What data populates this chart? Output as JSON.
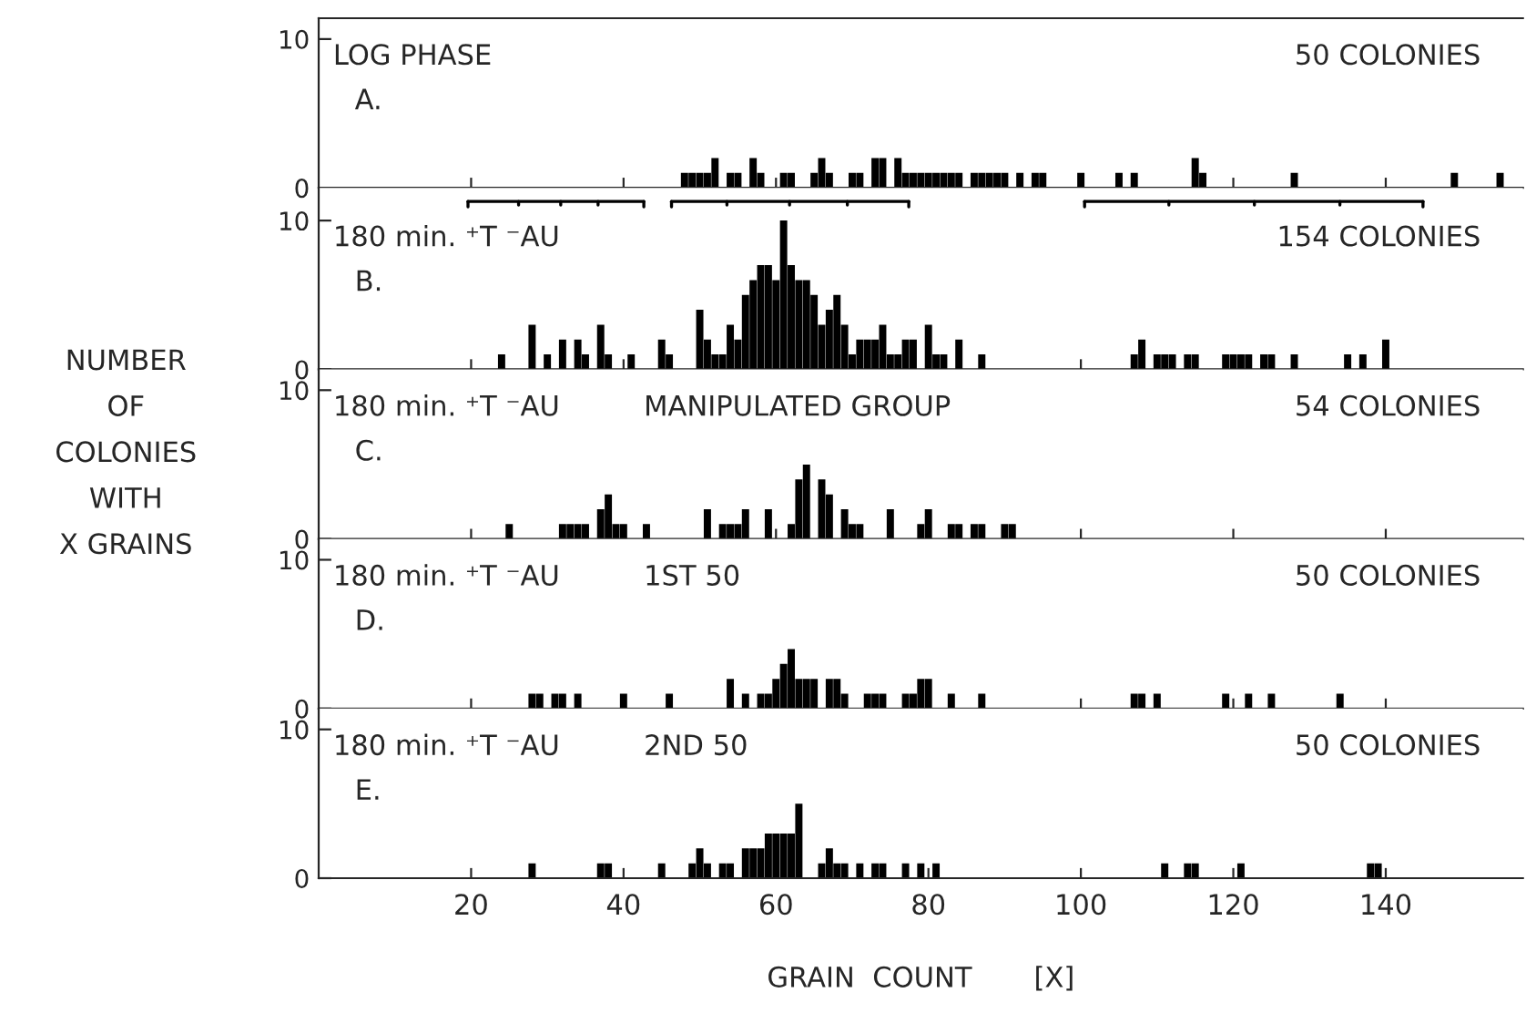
{
  "chart_data": [
    {
      "type": "bar",
      "title": "LOG PHASE",
      "subtitle": "A.",
      "annotations": [
        "50 COLONIES"
      ],
      "color": "#000000",
      "xlim": [
        0,
        158
      ],
      "xticks": [
        20,
        40,
        60,
        80,
        100,
        120,
        140
      ],
      "ylim": [
        0,
        11.4
      ],
      "yticks": [
        0,
        10
      ],
      "tick_labels": "y",
      "x": [
        48,
        49,
        50,
        51,
        52,
        54,
        55,
        57,
        58,
        61,
        62,
        65,
        66,
        67,
        70,
        71,
        73,
        74,
        76,
        77,
        78,
        79,
        80,
        81,
        82,
        83,
        84,
        86,
        87,
        88,
        89,
        90,
        92,
        94,
        95,
        100,
        105,
        107,
        115,
        116,
        128,
        149,
        155
      ],
      "values": [
        1,
        1,
        1,
        1,
        2,
        1,
        1,
        2,
        1,
        1,
        1,
        1,
        2,
        1,
        1,
        1,
        2,
        2,
        2,
        1,
        1,
        1,
        1,
        1,
        1,
        1,
        1,
        1,
        1,
        1,
        1,
        1,
        1,
        1,
        1,
        1,
        1,
        1,
        2,
        1,
        1,
        1,
        1
      ]
    },
    {
      "type": "bar",
      "title": "180 min. ⁺T ⁻AU",
      "subtitle": "B.",
      "annotations": [
        "154 COLONIES"
      ],
      "color": "#000000",
      "xlim": [
        0,
        158
      ],
      "xticks": [
        20,
        40,
        60,
        80,
        100,
        120,
        140
      ],
      "ylim": [
        0,
        12.2
      ],
      "yticks": [
        0,
        10
      ],
      "tick_labels": "y",
      "x": [
        24,
        28,
        30,
        32,
        34,
        35,
        37,
        38,
        41,
        45,
        46,
        50,
        51,
        52,
        53,
        54,
        55,
        56,
        57,
        58,
        59,
        60,
        61,
        62,
        63,
        64,
        65,
        66,
        67,
        68,
        69,
        70,
        71,
        72,
        73,
        74,
        75,
        76,
        77,
        78,
        80,
        81,
        82,
        84,
        87,
        107,
        108,
        110,
        111,
        112,
        114,
        115,
        119,
        120,
        121,
        122,
        124,
        125,
        128,
        135,
        137,
        140
      ],
      "values": [
        1,
        3,
        1,
        2,
        2,
        1,
        3,
        1,
        1,
        2,
        1,
        4,
        2,
        1,
        1,
        3,
        2,
        5,
        6,
        7,
        7,
        6,
        10,
        7,
        6,
        6,
        5,
        3,
        4,
        5,
        3,
        1,
        2,
        2,
        2,
        3,
        1,
        1,
        2,
        2,
        3,
        1,
        1,
        2,
        1,
        1,
        2,
        1,
        1,
        1,
        1,
        1,
        1,
        1,
        1,
        1,
        1,
        1,
        1,
        1,
        1,
        2
      ]
    },
    {
      "type": "bar",
      "title": "180 min. ⁺T ⁻AU",
      "subtitle": "C.",
      "annotations": [
        "MANIPULATED GROUP",
        "54 COLONIES"
      ],
      "ylabel": "NUMBER\nOF\nCOLONIES\nWITH\nX GRAINS",
      "color": "#000000",
      "xlim": [
        0,
        158
      ],
      "xticks": [
        20,
        40,
        60,
        80,
        100,
        120,
        140
      ],
      "ylim": [
        0,
        11.4
      ],
      "yticks": [
        0,
        10
      ],
      "tick_labels": "y",
      "x": [
        25,
        32,
        33,
        34,
        35,
        37,
        38,
        39,
        40,
        43,
        51,
        53,
        54,
        55,
        56,
        59,
        62,
        63,
        64,
        66,
        67,
        69,
        70,
        71,
        75,
        79,
        80,
        83,
        84,
        86,
        87,
        90,
        91
      ],
      "values": [
        1,
        1,
        1,
        1,
        1,
        2,
        3,
        1,
        1,
        1,
        2,
        1,
        1,
        1,
        2,
        2,
        1,
        4,
        5,
        4,
        3,
        2,
        1,
        1,
        2,
        1,
        2,
        1,
        1,
        1,
        1,
        1,
        1
      ]
    },
    {
      "type": "bar",
      "title": "180 min. ⁺T ⁻AU",
      "subtitle": "D.",
      "annotations": [
        "1ST 50",
        "50 COLONIES"
      ],
      "color": "#000000",
      "xlim": [
        0,
        158
      ],
      "xticks": [
        20,
        40,
        60,
        80,
        100,
        120,
        140
      ],
      "ylim": [
        0,
        11.4
      ],
      "yticks": [
        0,
        10
      ],
      "tick_labels": "y",
      "x": [
        28,
        29,
        31,
        32,
        34,
        40,
        46,
        54,
        56,
        58,
        59,
        60,
        61,
        62,
        63,
        64,
        65,
        67,
        68,
        69,
        72,
        73,
        74,
        77,
        78,
        79,
        80,
        83,
        87,
        107,
        108,
        110,
        119,
        122,
        125,
        134
      ],
      "values": [
        1,
        1,
        1,
        1,
        1,
        1,
        1,
        2,
        1,
        1,
        1,
        2,
        3,
        4,
        2,
        2,
        2,
        2,
        2,
        1,
        1,
        1,
        1,
        1,
        1,
        2,
        2,
        1,
        1,
        1,
        1,
        1,
        1,
        1,
        1,
        1
      ]
    },
    {
      "type": "bar",
      "title": "180 min. ⁺T ⁻AU",
      "subtitle": "E.",
      "annotations": [
        "2ND 50",
        "50 COLONIES"
      ],
      "xlabel": "GRAIN  COUNT       [X]",
      "color": "#000000",
      "xlim": [
        0,
        158
      ],
      "xticks": [
        20,
        40,
        60,
        80,
        100,
        120,
        140
      ],
      "ylim": [
        0,
        11.4
      ],
      "yticks": [
        0,
        10
      ],
      "x": [
        28,
        37,
        38,
        45,
        49,
        50,
        51,
        53,
        54,
        56,
        57,
        58,
        59,
        60,
        61,
        62,
        63,
        66,
        67,
        68,
        69,
        71,
        73,
        74,
        77,
        79,
        81,
        111,
        114,
        115,
        121,
        138,
        139
      ],
      "values": [
        1,
        1,
        1,
        1,
        1,
        2,
        1,
        1,
        1,
        2,
        2,
        2,
        3,
        3,
        3,
        3,
        5,
        1,
        2,
        1,
        1,
        1,
        1,
        1,
        1,
        1,
        1,
        1,
        1,
        1,
        1,
        1,
        1
      ]
    }
  ]
}
